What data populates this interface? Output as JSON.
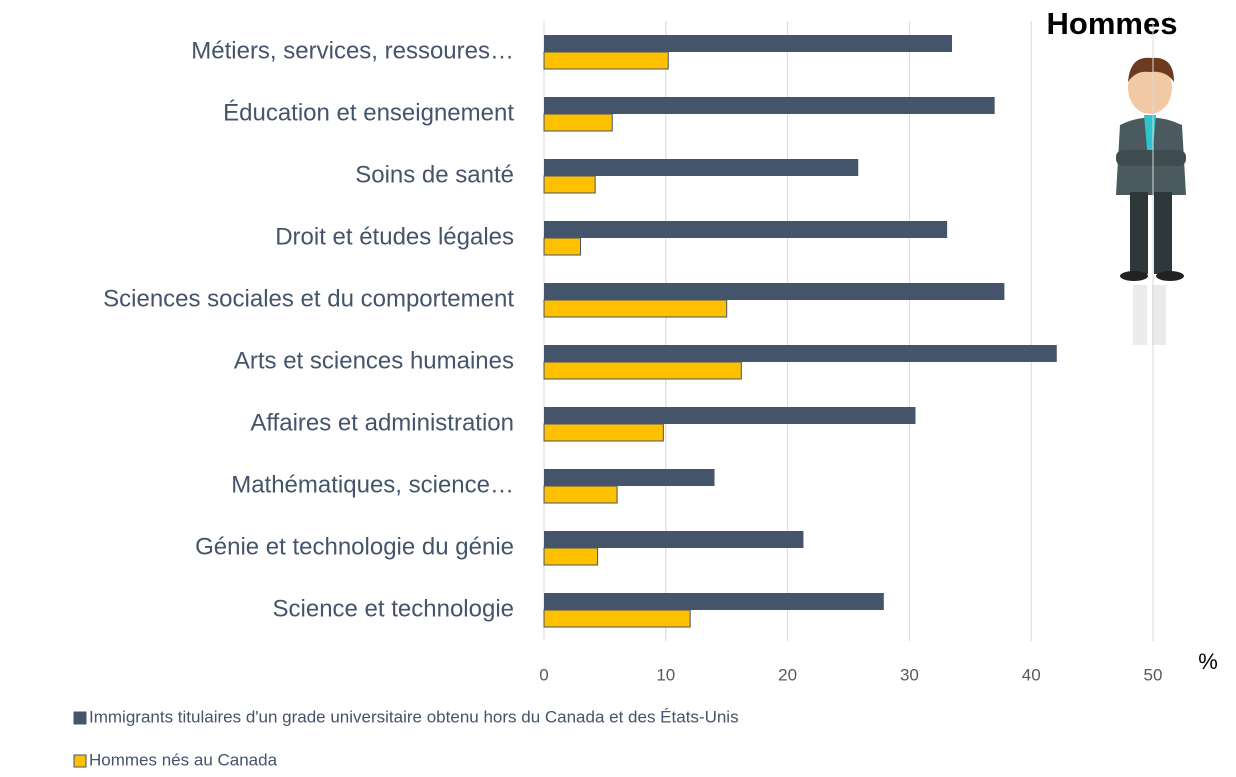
{
  "chart_data": {
    "type": "hbar",
    "title": "Hommes",
    "x_label": "%",
    "categories": [
      "Métiers, services, ressoures…",
      "Éducation et enseignement",
      "Soins de santé",
      "Droit et études légales",
      "Sciences sociales et du comportement",
      "Arts et sciences humaines",
      "Affaires et administration",
      "Mathématiques, science…",
      "Génie et technologie du génie",
      "Science et technologie"
    ],
    "series": [
      {
        "name": "Immigrants titulaires d'un grade universitaire obtenu hors du Canada et des États-Unis",
        "color": "#44546a",
        "values": [
          33.5,
          37,
          25.8,
          33.1,
          37.8,
          42.1,
          30.5,
          14,
          21.3,
          27.9
        ]
      },
      {
        "name": "Hommes nés au Canada",
        "color": "#ffc000",
        "values": [
          10.2,
          5.6,
          4.2,
          3,
          15,
          16.2,
          9.8,
          6,
          4.4,
          12
        ]
      }
    ],
    "xlim": [
      0,
      50
    ],
    "xticks": [
      0,
      10,
      20,
      30,
      40,
      50
    ],
    "grid": true
  }
}
